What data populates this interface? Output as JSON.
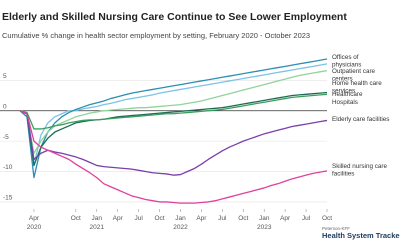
{
  "chart_data": {
    "type": "line",
    "title": "Elderly and Skilled Nursing Care Continue to See Lower Employment",
    "subtitle": "Cumulative % change in health sector employment by setting, February 2020 - October 2023",
    "x": [
      "2020-02",
      "2020-03",
      "2020-04",
      "2020-05",
      "2020-06",
      "2020-07",
      "2020-08",
      "2020-09",
      "2020-10",
      "2020-11",
      "2020-12",
      "2021-01",
      "2021-02",
      "2021-03",
      "2021-04",
      "2021-05",
      "2021-06",
      "2021-07",
      "2021-08",
      "2021-09",
      "2021-10",
      "2021-11",
      "2021-12",
      "2022-01",
      "2022-02",
      "2022-03",
      "2022-04",
      "2022-05",
      "2022-06",
      "2022-07",
      "2022-08",
      "2022-09",
      "2022-10",
      "2022-11",
      "2022-12",
      "2023-01",
      "2023-02",
      "2023-03",
      "2023-04",
      "2023-05",
      "2023-06",
      "2023-07",
      "2023-08",
      "2023-09",
      "2023-10"
    ],
    "xticks": [
      {
        "value": "2020-04",
        "label": "Apr 2020"
      },
      {
        "value": "2020-10",
        "label": "Oct"
      },
      {
        "value": "2021-01",
        "label": "Jan 2021"
      },
      {
        "value": "2021-04",
        "label": "Apr"
      },
      {
        "value": "2021-07",
        "label": "Jul"
      },
      {
        "value": "2021-10",
        "label": "Oct"
      },
      {
        "value": "2022-01",
        "label": "Jan 2022"
      },
      {
        "value": "2022-04",
        "label": "Apr"
      },
      {
        "value": "2022-07",
        "label": "Jul"
      },
      {
        "value": "2022-10",
        "label": "Oct"
      },
      {
        "value": "2023-01",
        "label": "Jan 2023"
      },
      {
        "value": "2023-04",
        "label": "Apr"
      },
      {
        "value": "2023-07",
        "label": "Jul"
      },
      {
        "value": "2023-10",
        "label": "Oct"
      }
    ],
    "ylim": [
      -16,
      9
    ],
    "yticks": [
      -15,
      -10,
      -5,
      0,
      5
    ],
    "grid": true,
    "series": [
      {
        "name": "Offices of physicians",
        "color": "#7cc3e6",
        "values": [
          0,
          -1,
          -9,
          -4,
          -2,
          -1,
          -0.5,
          0,
          0,
          0.3,
          0.5,
          0.7,
          1,
          1.2,
          1.5,
          1.8,
          2,
          2.2,
          2.4,
          2.6,
          2.9,
          3.1,
          3.3,
          3.5,
          3.7,
          3.9,
          4.1,
          4.3,
          4.5,
          4.7,
          4.9,
          5.1,
          5.3,
          5.5,
          5.7,
          5.9,
          6.1,
          6.3,
          6.5,
          6.7,
          6.9,
          7.1,
          7.3,
          7.5,
          7.7
        ]
      },
      {
        "name": "Outpatient care centers",
        "color": "#2b8fb0",
        "values": [
          0,
          -1,
          -11,
          -6,
          -3.5,
          -2,
          -1,
          -0.3,
          0.2,
          0.6,
          1,
          1.3,
          1.6,
          2,
          2.3,
          2.6,
          2.9,
          3.1,
          3.3,
          3.5,
          3.7,
          3.9,
          4.1,
          4.3,
          4.5,
          4.7,
          4.9,
          5.1,
          5.3,
          5.5,
          5.7,
          5.9,
          6.1,
          6.3,
          6.5,
          6.7,
          6.9,
          7.1,
          7.3,
          7.5,
          7.7,
          7.9,
          8.1,
          8.3,
          8.5
        ]
      },
      {
        "name": "Home health care services",
        "color": "#8fd49a",
        "values": [
          0,
          -0.5,
          -7,
          -5,
          -3.5,
          -2.5,
          -2,
          -1.5,
          -1,
          -0.7,
          -0.4,
          -0.2,
          0,
          0.1,
          0.2,
          0.3,
          0.4,
          0.5,
          0.5,
          0.6,
          0.7,
          0.8,
          0.9,
          1,
          1.2,
          1.4,
          1.6,
          1.9,
          2.2,
          2.5,
          2.8,
          3.1,
          3.4,
          3.7,
          4,
          4.3,
          4.6,
          4.9,
          5.2,
          5.5,
          5.8,
          6,
          6.2,
          6.4,
          6.6
        ]
      },
      {
        "name": "Healthcare",
        "color": "#1f6b55",
        "values": [
          0,
          -0.5,
          -9,
          -6,
          -4.5,
          -3.5,
          -3,
          -2.5,
          -2,
          -1.8,
          -1.6,
          -1.5,
          -1.4,
          -1.2,
          -1,
          -0.9,
          -0.8,
          -0.7,
          -0.6,
          -0.5,
          -0.4,
          -0.3,
          -0.2,
          -0.1,
          0,
          0.1,
          0.2,
          0.3,
          0.4,
          0.5,
          0.7,
          0.9,
          1.1,
          1.3,
          1.5,
          1.7,
          1.9,
          2.1,
          2.3,
          2.5,
          2.6,
          2.7,
          2.8,
          2.9,
          3
        ]
      },
      {
        "name": "Hospitals",
        "color": "#3a9e5e",
        "values": [
          0,
          -0.3,
          -3,
          -3,
          -2.8,
          -2.5,
          -2.3,
          -2,
          -1.8,
          -1.6,
          -1.5,
          -1.5,
          -1.4,
          -1.3,
          -1.2,
          -1.1,
          -1,
          -0.9,
          -0.8,
          -0.7,
          -0.6,
          -0.5,
          -0.5,
          -0.4,
          -0.3,
          -0.2,
          -0.1,
          0,
          0.1,
          0.2,
          0.4,
          0.6,
          0.8,
          1,
          1.2,
          1.4,
          1.6,
          1.8,
          2,
          2.2,
          2.3,
          2.4,
          2.5,
          2.6,
          2.7
        ]
      },
      {
        "name": "Elderly care facilities",
        "color": "#7b3fa8",
        "values": [
          0,
          -0.5,
          -8,
          -7,
          -6.5,
          -6.8,
          -7,
          -7.3,
          -7.6,
          -8,
          -8.5,
          -9,
          -9.2,
          -9.3,
          -9.4,
          -9.5,
          -9.6,
          -9.8,
          -10,
          -10.2,
          -10.3,
          -10.4,
          -10.6,
          -10.5,
          -10,
          -9.5,
          -8.8,
          -8,
          -7.3,
          -6.6,
          -6,
          -5.5,
          -5,
          -4.6,
          -4.2,
          -3.8,
          -3.5,
          -3.2,
          -2.9,
          -2.6,
          -2.4,
          -2.2,
          -2,
          -1.8,
          -1.6
        ]
      },
      {
        "name": "Skilled nursing care facilities",
        "color": "#e0409a",
        "values": [
          0,
          -0.5,
          -5,
          -6,
          -6.5,
          -7,
          -7.5,
          -8,
          -8.8,
          -9.5,
          -10.2,
          -11,
          -12,
          -12.5,
          -13,
          -13.5,
          -14,
          -14.3,
          -14.6,
          -14.8,
          -15,
          -15,
          -15.1,
          -15.2,
          -15.2,
          -15.2,
          -15.1,
          -15,
          -14.8,
          -14.5,
          -14.2,
          -13.9,
          -13.6,
          -13.3,
          -13,
          -12.7,
          -12.3,
          -12,
          -11.6,
          -11.2,
          -10.9,
          -10.6,
          -10.3,
          -10.1,
          -9.9
        ]
      }
    ]
  },
  "brand": {
    "org": "Peterson-KFF",
    "name": "Health System Tracker"
  }
}
